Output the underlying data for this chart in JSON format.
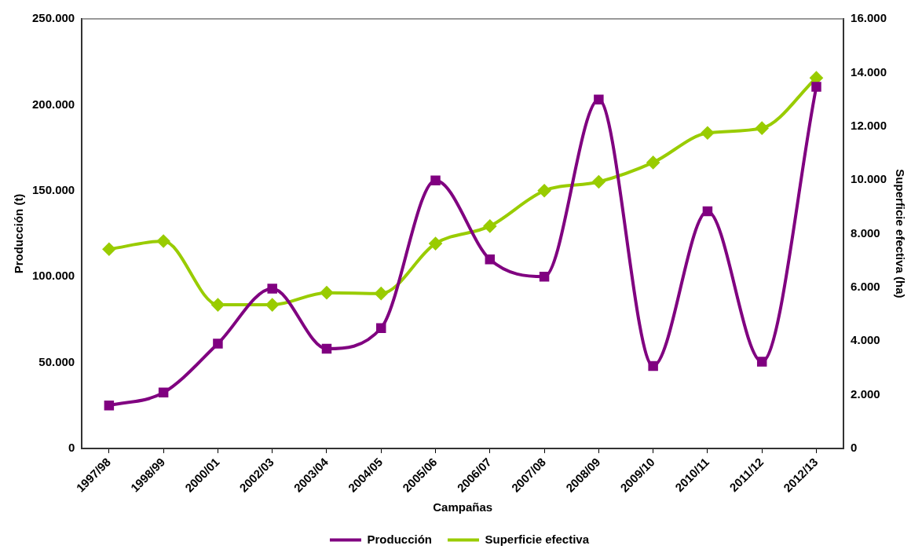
{
  "chart_data": {
    "type": "line",
    "xlabel": "Campañas",
    "ylabel": "Producción (t)",
    "y2label": "Superficie efectiva (ha)",
    "categories": [
      "1997/98",
      "1998/99",
      "2000/01",
      "2002/03",
      "2003/04",
      "2004/05",
      "2005/06",
      "2006/07",
      "2007/08",
      "2008/09",
      "2009/10",
      "2010/11",
      "2011/12",
      "2012/13"
    ],
    "series": [
      {
        "name": "Producción",
        "color": "#800080",
        "marker": "square",
        "values": [
          25000,
          32500,
          61000,
          93000,
          58000,
          70000,
          156000,
          110000,
          100000,
          203000,
          48000,
          138000,
          50500,
          210500
        ]
      },
      {
        "name": "Superficie efectiva",
        "color": "#99cc00",
        "marker": "diamond",
        "axis": "y2",
        "values": [
          7420,
          7720,
          5350,
          5350,
          5800,
          5770,
          7630,
          8280,
          9600,
          9930,
          10650,
          11750,
          11930,
          13800
        ]
      }
    ],
    "ylim": [
      0,
      250000
    ],
    "yticks": [
      {
        "value": 0,
        "label": "0"
      },
      {
        "value": 50000,
        "label": "50.000"
      },
      {
        "value": 100000,
        "label": "100.000"
      },
      {
        "value": 150000,
        "label": "150.000"
      },
      {
        "value": 200000,
        "label": "200.000"
      },
      {
        "value": 250000,
        "label": "250.000"
      }
    ],
    "y2lim": [
      0,
      16000
    ],
    "y2ticks": [
      {
        "value": 0,
        "label": "0"
      },
      {
        "value": 2000,
        "label": "2.000"
      },
      {
        "value": 4000,
        "label": "4.000"
      },
      {
        "value": 6000,
        "label": "6.000"
      },
      {
        "value": 8000,
        "label": "8.000"
      },
      {
        "value": 10000,
        "label": "10.000"
      },
      {
        "value": 12000,
        "label": "12.000"
      },
      {
        "value": 14000,
        "label": "14.000"
      },
      {
        "value": 16000,
        "label": "16.000"
      }
    ],
    "grid": false,
    "legend": "bottom"
  }
}
